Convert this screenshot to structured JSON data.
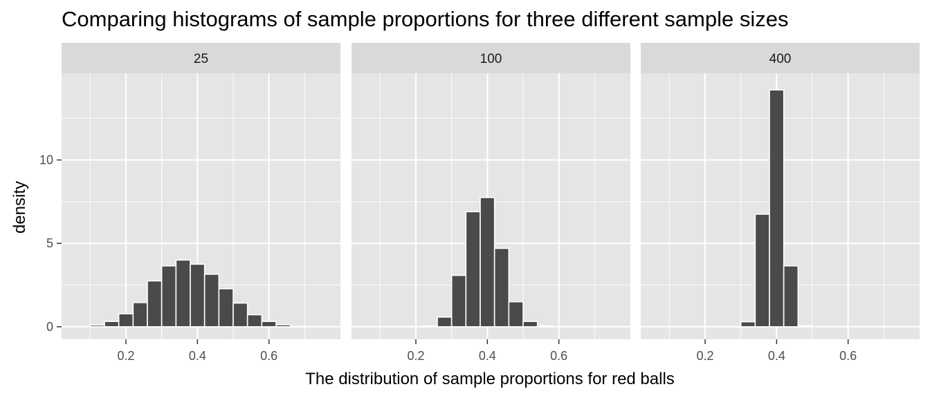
{
  "chart_data": {
    "type": "bar",
    "title": "Comparing histograms of sample proportions for three different sample sizes",
    "xlabel": "The distribution of sample proportions for red balls",
    "ylabel": "density",
    "xlim": [
      0.02,
      0.8
    ],
    "ylim": [
      -0.75,
      15.2
    ],
    "x_ticks": [
      0.2,
      0.4,
      0.6
    ],
    "x_tick_labels": [
      "0.2",
      "0.4",
      "0.6"
    ],
    "y_ticks": [
      0,
      5,
      10
    ],
    "y_tick_labels": [
      "0",
      "5",
      "10"
    ],
    "bin_width": 0.04,
    "colors": {
      "bar_fill": "#4a4a4a",
      "bar_stroke": "#ffffff",
      "panel_bg": "#e5e5e5",
      "strip_bg": "#d9d9d9",
      "grid": "#ffffff"
    },
    "grid": true,
    "facets": [
      {
        "label": "25",
        "bin_centers": [
          0.08,
          0.12,
          0.16,
          0.2,
          0.24,
          0.28,
          0.32,
          0.36,
          0.4,
          0.44,
          0.48,
          0.52,
          0.56,
          0.6,
          0.64,
          0.68
        ],
        "values": [
          0.02,
          0.1,
          0.32,
          0.78,
          1.45,
          2.75,
          3.65,
          4.0,
          3.75,
          3.15,
          2.28,
          1.42,
          0.72,
          0.32,
          0.12,
          0.03
        ]
      },
      {
        "label": "100",
        "bin_centers": [
          0.2,
          0.24,
          0.28,
          0.32,
          0.36,
          0.4,
          0.44,
          0.48,
          0.52,
          0.56
        ],
        "values": [
          0.01,
          0.05,
          0.58,
          3.08,
          6.9,
          7.75,
          4.7,
          1.5,
          0.32,
          0.05
        ]
      },
      {
        "label": "400",
        "bin_centers": [
          0.28,
          0.32,
          0.36,
          0.4,
          0.44,
          0.48
        ],
        "values": [
          0.01,
          0.3,
          6.75,
          14.2,
          3.65,
          0.06
        ]
      }
    ]
  }
}
